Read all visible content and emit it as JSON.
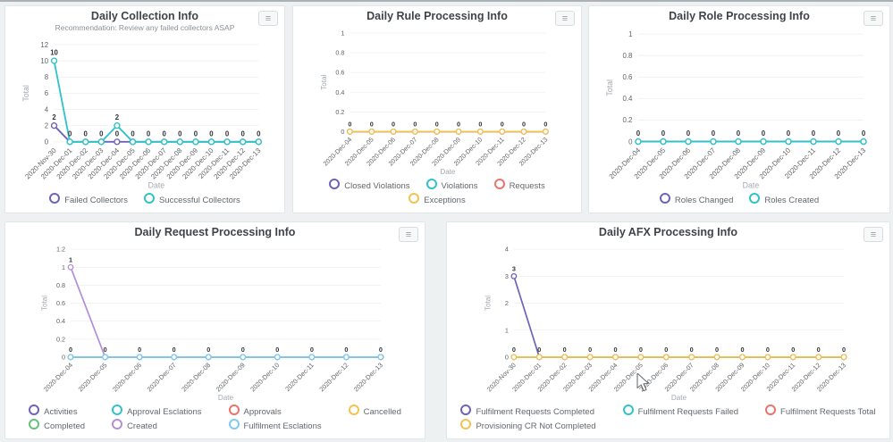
{
  "icons": {
    "panel_menu": "hamburger-menu-icon"
  },
  "chart_data": [
    {
      "type": "line",
      "title": "Daily Collection Info",
      "subtitle": "Recommendation: Review any failed collectors ASAP",
      "xlabel": "Date",
      "ylabel": "Total",
      "ylim": [
        0,
        12
      ],
      "yticks": [
        0,
        2,
        4,
        6,
        8,
        10,
        12
      ],
      "grid": true,
      "x_label_rotation": -45,
      "legend_position": "bottom",
      "legend_columns": 0,
      "categories": [
        "2020-Nov-30",
        "2020-Dec-01",
        "2020-Dec-02",
        "2020-Dec-03",
        "2020-Dec-04",
        "2020-Dec-05",
        "2020-Dec-06",
        "2020-Dec-07",
        "2020-Dec-08",
        "2020-Dec-09",
        "2020-Dec-10",
        "2020-Dec-11",
        "2020-Dec-12",
        "2020-Dec-13"
      ],
      "series": [
        {
          "name": "Failed Collectors",
          "color": "#6f63b7",
          "values": [
            2,
            0,
            0,
            0,
            0,
            0,
            0,
            0,
            0,
            0,
            0,
            0,
            0,
            0
          ]
        },
        {
          "name": "Successful Collectors",
          "color": "#31c3c7",
          "values": [
            10,
            0,
            0,
            0,
            2,
            0,
            0,
            0,
            0,
            0,
            0,
            0,
            0,
            0
          ]
        }
      ]
    },
    {
      "type": "line",
      "title": "Daily Rule Processing Info",
      "subtitle": "",
      "xlabel": "Date",
      "ylabel": "Total",
      "ylim": [
        0,
        1
      ],
      "yticks": [
        0,
        0.2,
        0.4,
        0.6,
        0.8,
        1
      ],
      "grid": true,
      "x_label_rotation": -45,
      "legend_position": "bottom",
      "legend_columns": 0,
      "categories": [
        "2020-Dec-04",
        "2020-Dec-05",
        "2020-Dec-06",
        "2020-Dec-07",
        "2020-Dec-08",
        "2020-Dec-09",
        "2020-Dec-10",
        "2020-Dec-11",
        "2020-Dec-12",
        "2020-Dec-13"
      ],
      "series": [
        {
          "name": "Closed Violations",
          "color": "#6f63b7",
          "values": [
            0,
            0,
            0,
            0,
            0,
            0,
            0,
            0,
            0,
            0
          ]
        },
        {
          "name": "Violations",
          "color": "#31c3c7",
          "values": [
            0,
            0,
            0,
            0,
            0,
            0,
            0,
            0,
            0,
            0
          ]
        },
        {
          "name": "Requests",
          "color": "#ea736e",
          "values": [
            0,
            0,
            0,
            0,
            0,
            0,
            0,
            0,
            0,
            0
          ]
        },
        {
          "name": "Exceptions",
          "color": "#f3c351",
          "values": [
            0,
            0,
            0,
            0,
            0,
            0,
            0,
            0,
            0,
            0
          ]
        }
      ]
    },
    {
      "type": "line",
      "title": "Daily Role Processing Info",
      "subtitle": "",
      "xlabel": "Date",
      "ylabel": "Total",
      "ylim": [
        0,
        1
      ],
      "yticks": [
        0,
        0.2,
        0.4,
        0.6,
        0.8,
        1
      ],
      "grid": true,
      "x_label_rotation": -45,
      "legend_position": "bottom",
      "legend_columns": 0,
      "categories": [
        "2020-Dec-04",
        "2020-Dec-05",
        "2020-Dec-06",
        "2020-Dec-07",
        "2020-Dec-08",
        "2020-Dec-09",
        "2020-Dec-10",
        "2020-Dec-11",
        "2020-Dec-12",
        "2020-Dec-13"
      ],
      "series": [
        {
          "name": "Roles Changed",
          "color": "#6f63b7",
          "values": [
            0,
            0,
            0,
            0,
            0,
            0,
            0,
            0,
            0,
            0
          ]
        },
        {
          "name": "Roles Created",
          "color": "#31c3c7",
          "values": [
            0,
            0,
            0,
            0,
            0,
            0,
            0,
            0,
            0,
            0
          ]
        }
      ]
    },
    {
      "type": "line",
      "title": "Daily Request Processing Info",
      "subtitle": "",
      "xlabel": "Date",
      "ylabel": "Total",
      "ylim": [
        0,
        1.2
      ],
      "yticks": [
        0,
        0.2,
        0.4,
        0.6,
        0.8,
        1,
        1.2
      ],
      "grid": true,
      "x_label_rotation": -45,
      "legend_position": "bottom",
      "legend_columns": 4,
      "categories": [
        "2020-Dec-04",
        "2020-Dec-05",
        "2020-Dec-06",
        "2020-Dec-07",
        "2020-Dec-08",
        "2020-Dec-09",
        "2020-Dec-10",
        "2020-Dec-11",
        "2020-Dec-12",
        "2020-Dec-13"
      ],
      "series": [
        {
          "name": "Activities",
          "color": "#6f63b7",
          "values": [
            0,
            0,
            0,
            0,
            0,
            0,
            0,
            0,
            0,
            0
          ]
        },
        {
          "name": "Approval Esclations",
          "color": "#31c3c7",
          "values": [
            0,
            0,
            0,
            0,
            0,
            0,
            0,
            0,
            0,
            0
          ]
        },
        {
          "name": "Approvals",
          "color": "#ea736e",
          "values": [
            0,
            0,
            0,
            0,
            0,
            0,
            0,
            0,
            0,
            0
          ]
        },
        {
          "name": "Cancelled",
          "color": "#f3c351",
          "values": [
            0,
            0,
            0,
            0,
            0,
            0,
            0,
            0,
            0,
            0
          ]
        },
        {
          "name": "Completed",
          "color": "#63c179",
          "values": [
            0,
            0,
            0,
            0,
            0,
            0,
            0,
            0,
            0,
            0
          ]
        },
        {
          "name": "Created",
          "color": "#b28fd6",
          "values": [
            1,
            0,
            0,
            0,
            0,
            0,
            0,
            0,
            0,
            0
          ]
        },
        {
          "name": "Fulfilment Esclations",
          "color": "#7ecbf2",
          "values": [
            0,
            0,
            0,
            0,
            0,
            0,
            0,
            0,
            0,
            0
          ]
        }
      ]
    },
    {
      "type": "line",
      "title": "Daily AFX Processing Info",
      "subtitle": "",
      "xlabel": "Date",
      "ylabel": "Total",
      "ylim": [
        0,
        4
      ],
      "yticks": [
        0,
        1,
        2,
        3,
        4
      ],
      "grid": true,
      "x_label_rotation": -45,
      "legend_position": "bottom",
      "legend_columns": 3,
      "categories": [
        "2020-Nov-30",
        "2020-Dec-01",
        "2020-Dec-02",
        "2020-Dec-03",
        "2020-Dec-04",
        "2020-Dec-05",
        "2020-Dec-06",
        "2020-Dec-07",
        "2020-Dec-08",
        "2020-Dec-09",
        "2020-Dec-10",
        "2020-Dec-11",
        "2020-Dec-12",
        "2020-Dec-13"
      ],
      "series": [
        {
          "name": "Fulfilment Requests Completed",
          "color": "#6f63b7",
          "values": [
            3,
            0,
            0,
            0,
            0,
            0,
            0,
            0,
            0,
            0,
            0,
            0,
            0,
            0
          ]
        },
        {
          "name": "Fulfilment Requests Failed",
          "color": "#31c3c7",
          "values": [
            0,
            0,
            0,
            0,
            0,
            0,
            0,
            0,
            0,
            0,
            0,
            0,
            0,
            0
          ]
        },
        {
          "name": "Fulfilment Requests Total",
          "color": "#ea736e",
          "values": [
            0,
            0,
            0,
            0,
            0,
            0,
            0,
            0,
            0,
            0,
            0,
            0,
            0,
            0
          ]
        },
        {
          "name": "Provisioning CR Not Completed",
          "color": "#f3c351",
          "values": [
            0,
            0,
            0,
            0,
            0,
            0,
            0,
            0,
            0,
            0,
            0,
            0,
            0,
            0
          ]
        }
      ]
    }
  ]
}
